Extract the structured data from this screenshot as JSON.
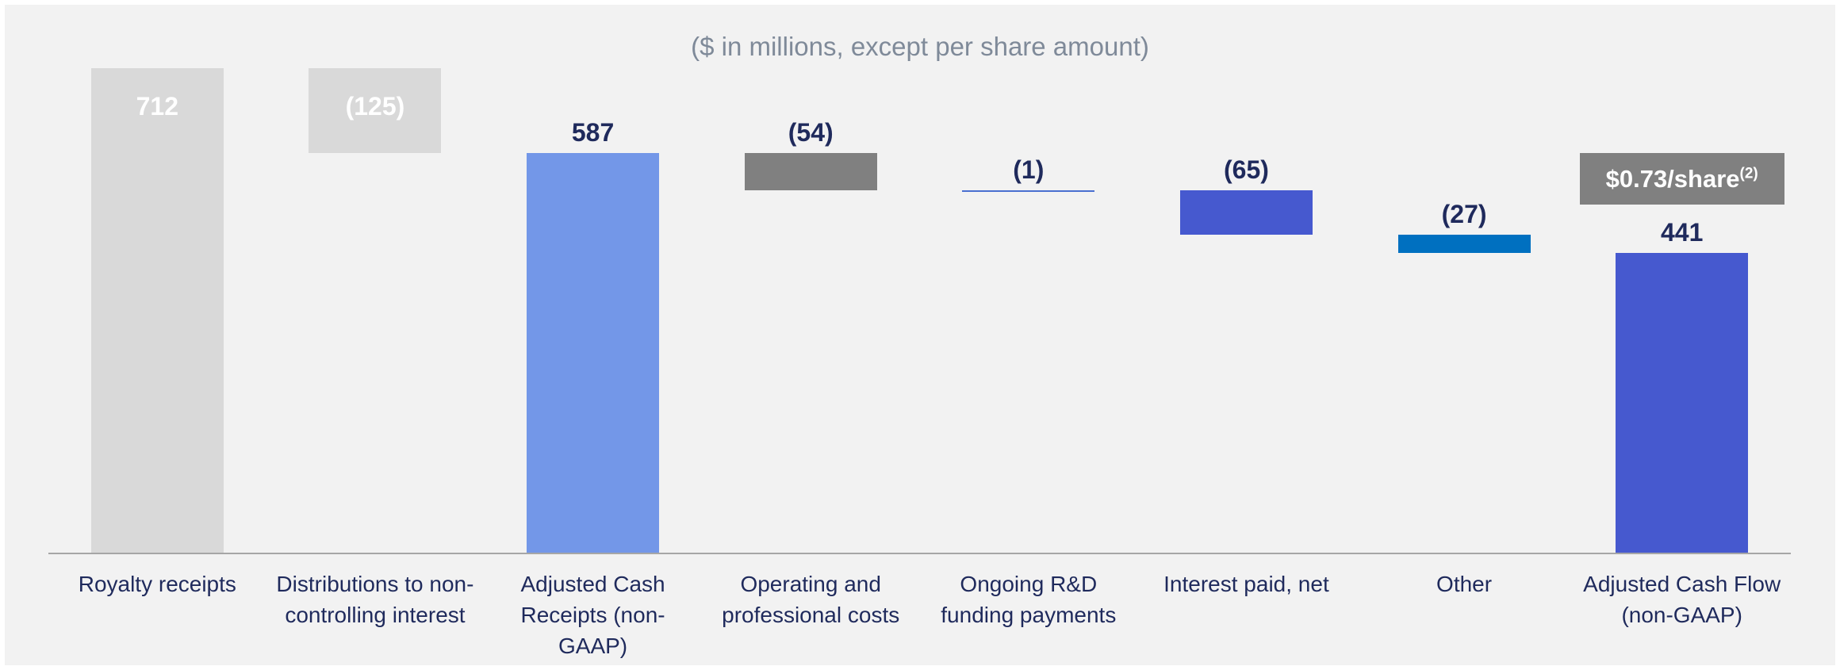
{
  "chart_data": {
    "type": "waterfall",
    "subtitle": "($ in millions, except per share amount)",
    "categories": [
      "Royalty receipts",
      "Distributions to non-controlling interest",
      "Adjusted Cash Receipts (non-GAAP)",
      "Operating and professional costs",
      "Ongoing R&D funding payments",
      "Interest paid, net",
      "Other",
      "Adjusted Cash Flow (non-GAAP)"
    ],
    "values": [
      712,
      -125,
      587,
      -54,
      -1,
      -65,
      -27,
      441
    ],
    "value_labels": [
      "712",
      "(125)",
      "587",
      "(54)",
      "(1)",
      "(65)",
      "(27)",
      "441"
    ],
    "is_total": [
      true,
      false,
      true,
      false,
      false,
      false,
      false,
      true
    ],
    "colors": [
      "#d9d9d9",
      "#d9d9d9",
      "#7397e8",
      "#808080",
      "#4a6fd0",
      "#4659cf",
      "#0070c0",
      "#4659cf"
    ],
    "label_position": [
      "inside",
      "inside",
      "above",
      "above",
      "above",
      "above",
      "above",
      "above"
    ],
    "annotation": {
      "text": "$0.73/share",
      "superscript": "(2)"
    }
  }
}
